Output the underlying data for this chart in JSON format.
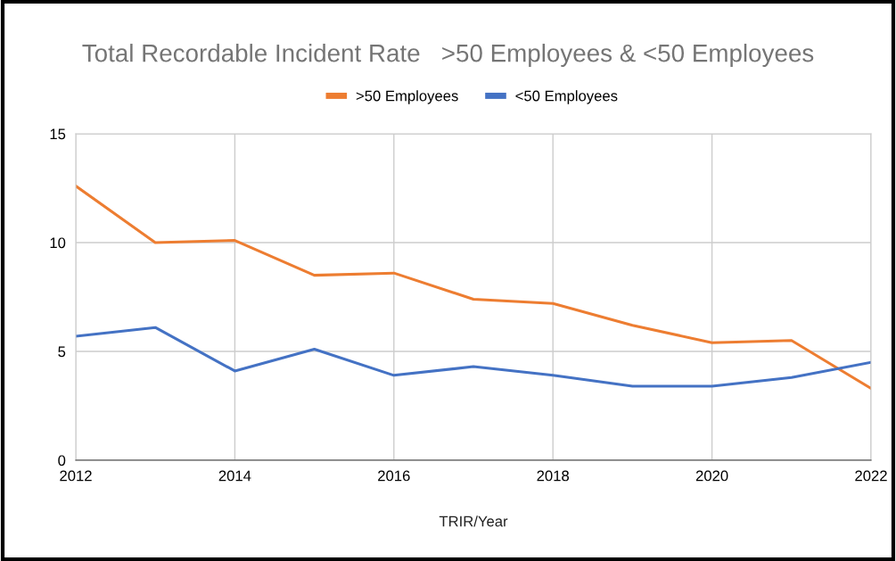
{
  "chart_data": {
    "type": "line",
    "title": "Total Recordable Incident Rate   >50 Employees & <50 Employees",
    "xlabel": "TRIR/Year",
    "x": [
      2012,
      2013,
      2014,
      2015,
      2016,
      2017,
      2018,
      2019,
      2020,
      2021,
      2022
    ],
    "series": [
      {
        "name": ">50 Employees",
        "color": "#ed7d31",
        "values": [
          12.6,
          10.0,
          10.1,
          8.5,
          8.6,
          7.4,
          7.2,
          6.2,
          5.4,
          5.5,
          3.3
        ]
      },
      {
        "name": "<50 Employees",
        "color": "#4472c4",
        "values": [
          5.7,
          6.1,
          4.1,
          5.1,
          3.9,
          4.3,
          3.9,
          3.4,
          3.4,
          3.8,
          4.5
        ]
      }
    ],
    "xlim": [
      2012,
      2022
    ],
    "xticks": [
      2012,
      2014,
      2016,
      2018,
      2020,
      2022
    ],
    "ylim": [
      0,
      15
    ],
    "yticks": [
      0,
      5,
      10,
      15
    ],
    "grid": true,
    "legend": "top",
    "marker": "none",
    "line_style": "solid"
  }
}
